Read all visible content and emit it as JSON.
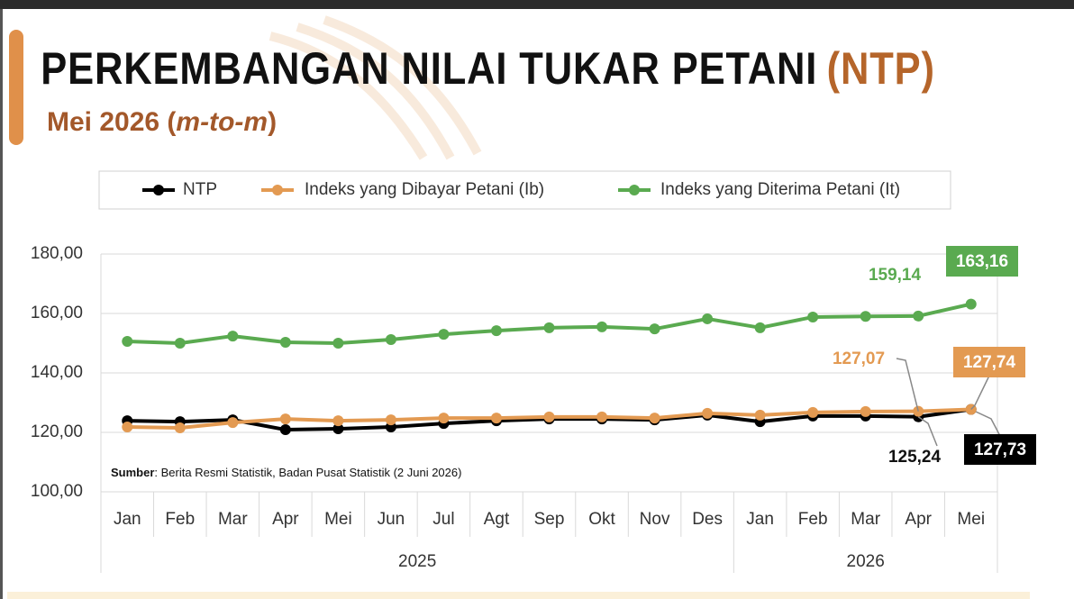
{
  "chart_data": {
    "type": "line",
    "title": [
      "PERKEMBANGAN NILAI TUKAR PETANI",
      "(NTP)"
    ],
    "subtitle": [
      "Mei 2026 (",
      "m-to-m",
      ")"
    ],
    "source": [
      "Sumber",
      ": Berita Resmi Statistik, Badan Pusat Statistik (2 Juni 2026)"
    ],
    "groups": [
      {
        "label": "2025",
        "categories": [
          "Jan",
          "Feb",
          "Mar",
          "Apr",
          "Mei",
          "Jun",
          "Jul",
          "Agt",
          "Sep",
          "Okt",
          "Nov",
          "Des"
        ]
      },
      {
        "label": "2026",
        "categories": [
          "Jan",
          "Feb",
          "Mar",
          "Apr",
          "Mei"
        ]
      }
    ],
    "ylim": [
      100,
      180
    ],
    "yticks": [
      {
        "value": 100,
        "label": "100,00"
      },
      {
        "value": 120,
        "label": "120,00"
      },
      {
        "value": 140,
        "label": "140,00"
      },
      {
        "value": 160,
        "label": "160,00"
      },
      {
        "value": 180,
        "label": "180,00"
      }
    ],
    "grid": true,
    "legend": "top",
    "series": [
      {
        "name": "NTP",
        "color": "#000000",
        "values": [
          123.9,
          123.6,
          124.2,
          120.9,
          121.2,
          121.8,
          123.0,
          123.9,
          124.5,
          124.5,
          124.2,
          125.8,
          123.6,
          125.5,
          125.5,
          125.24,
          127.73
        ],
        "value_labels": [
          null,
          null,
          null,
          null,
          null,
          null,
          null,
          null,
          null,
          null,
          null,
          null,
          null,
          null,
          null,
          "125,24",
          "127,73"
        ]
      },
      {
        "name": "Indeks yang Dibayar Petani (Ib)",
        "color": "#e39a52",
        "values": [
          121.8,
          121.5,
          123.3,
          124.5,
          123.9,
          124.2,
          124.8,
          124.8,
          125.2,
          125.2,
          124.8,
          126.4,
          125.8,
          126.7,
          127.0,
          127.07,
          127.74
        ],
        "value_labels": [
          null,
          null,
          null,
          null,
          null,
          null,
          null,
          null,
          null,
          null,
          null,
          null,
          null,
          null,
          null,
          "127,07",
          "127,74"
        ]
      },
      {
        "name": "Indeks yang Diterima Petani (It)",
        "color": "#5aaa50",
        "values": [
          150.6,
          150.0,
          152.4,
          150.3,
          150.0,
          151.2,
          153.0,
          154.2,
          155.2,
          155.5,
          154.8,
          158.2,
          155.2,
          158.8,
          159.0,
          159.14,
          163.16
        ],
        "value_labels": [
          null,
          null,
          null,
          null,
          null,
          null,
          null,
          null,
          null,
          null,
          null,
          null,
          null,
          null,
          null,
          "159,14",
          "163,16"
        ]
      }
    ]
  }
}
